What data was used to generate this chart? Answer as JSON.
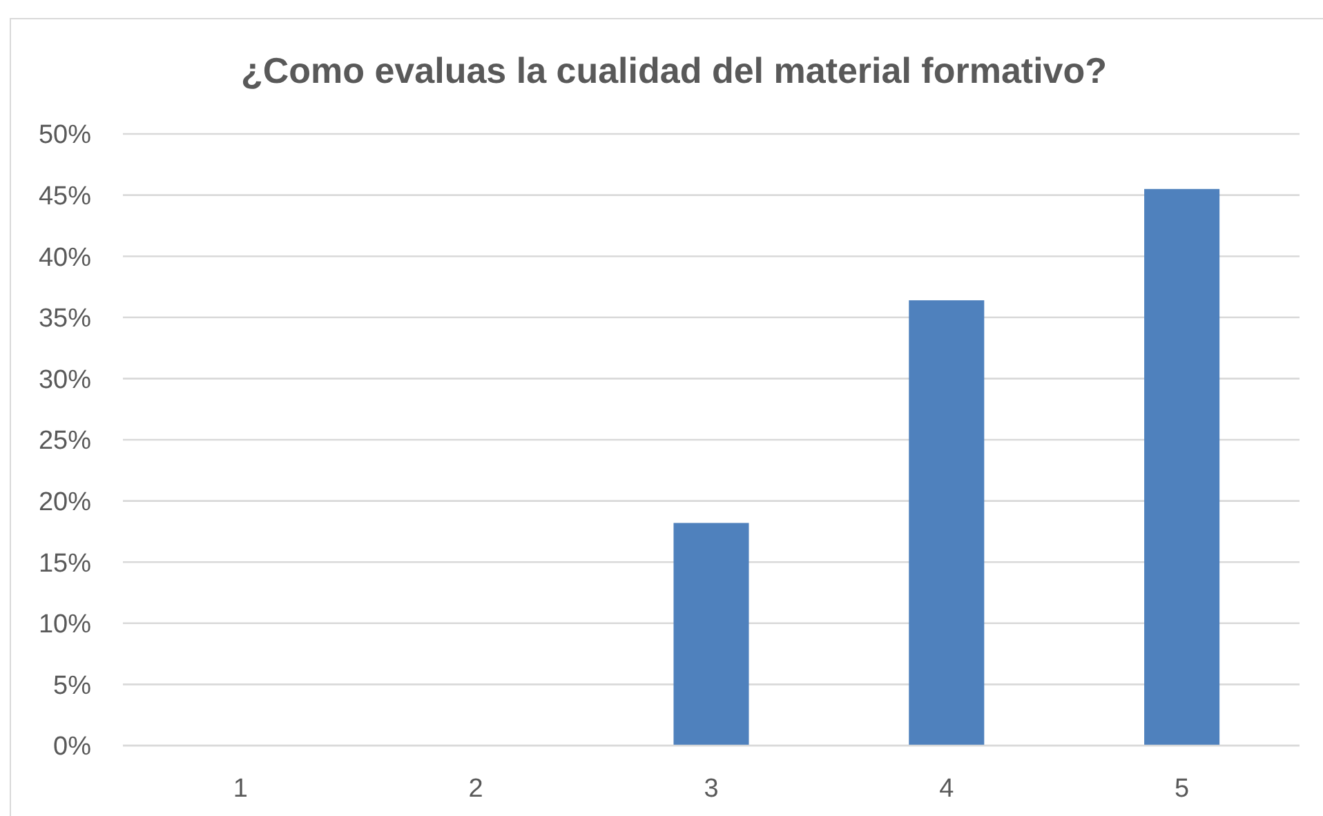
{
  "chart_data": {
    "type": "bar",
    "title": "¿Como evaluas la cualidad del material formativo?",
    "categories": [
      "1",
      "2",
      "3",
      "4",
      "5"
    ],
    "values": [
      0,
      0,
      18.2,
      36.4,
      45.5
    ],
    "color": "#4f81bd",
    "ylim": [
      0,
      50
    ],
    "yticks": [
      {
        "value": 0,
        "label": "0%"
      },
      {
        "value": 5,
        "label": "5%"
      },
      {
        "value": 10,
        "label": "10%"
      },
      {
        "value": 15,
        "label": "15%"
      },
      {
        "value": 20,
        "label": "20%"
      },
      {
        "value": 25,
        "label": "25%"
      },
      {
        "value": 30,
        "label": "30%"
      },
      {
        "value": 35,
        "label": "35%"
      },
      {
        "value": 40,
        "label": "40%"
      },
      {
        "value": 45,
        "label": "45%"
      },
      {
        "value": 50,
        "label": "50%"
      }
    ],
    "grid": "y"
  }
}
